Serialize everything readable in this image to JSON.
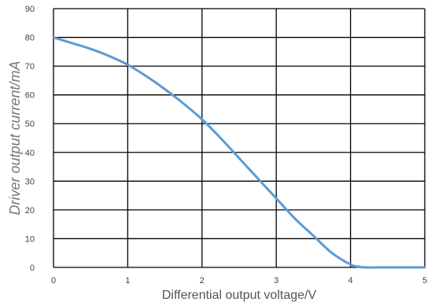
{
  "chart_data": {
    "type": "line",
    "title": "",
    "xlabel": "Differential output voltage/V",
    "ylabel": "Driver output current/mA",
    "xlim": [
      0,
      5
    ],
    "ylim": [
      0,
      90
    ],
    "x_ticks": [
      0,
      1,
      2,
      3,
      4,
      5
    ],
    "y_ticks": [
      0,
      10,
      20,
      30,
      40,
      50,
      60,
      70,
      80,
      90
    ],
    "grid": true,
    "legend": "none",
    "line_color": "#5B9BD5",
    "series": [
      {
        "x": [
          0,
          0.25,
          0.5,
          0.75,
          1.0,
          1.25,
          1.5,
          1.75,
          2.0,
          2.25,
          2.5,
          2.75,
          3.0,
          3.25,
          3.5,
          3.75,
          4.0,
          4.1,
          4.2,
          4.5,
          5.0
        ],
        "values": [
          80,
          78,
          76,
          73.5,
          70.5,
          66.5,
          62,
          57,
          51.5,
          45,
          38,
          31,
          24,
          17,
          11,
          5,
          1,
          0.3,
          0,
          0,
          0
        ]
      }
    ]
  }
}
